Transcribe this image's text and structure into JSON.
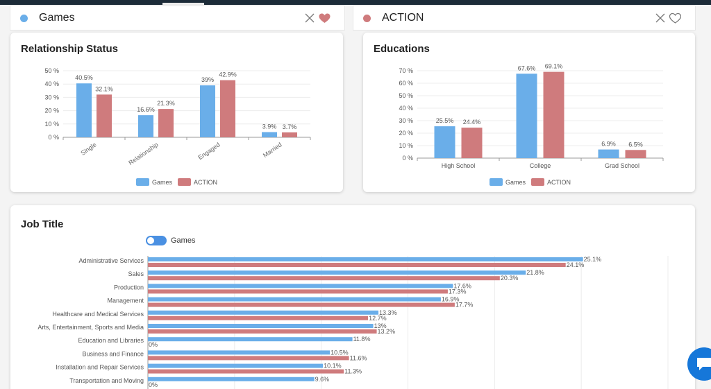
{
  "selectors": [
    {
      "name": "Games",
      "color": "#6aaee9"
    },
    {
      "name": "ACTION",
      "color": "#cf7b7d"
    }
  ],
  "colors": {
    "games": "#6aaee9",
    "action": "#cf7b7d",
    "heart_filled": "#cf7b7d"
  },
  "relationship": {
    "title": "Relationship Status",
    "legend": [
      "Games",
      "ACTION"
    ]
  },
  "educations": {
    "title": "Educations",
    "legend": [
      "Games",
      "ACTION"
    ]
  },
  "job": {
    "title": "Job Title",
    "toggle_label": "Games"
  },
  "chart_data": [
    {
      "type": "bar",
      "title": "Relationship Status",
      "categories": [
        "Single",
        "Relationship",
        "Engaged",
        "Married"
      ],
      "series": [
        {
          "name": "Games",
          "values": [
            40.5,
            16.6,
            39,
            3.9
          ]
        },
        {
          "name": "ACTION",
          "values": [
            32.1,
            21.3,
            42.9,
            3.7
          ]
        }
      ],
      "yticks": [
        "0 %",
        "10 %",
        "20 %",
        "30 %",
        "40 %",
        "50 %"
      ],
      "ylim": [
        0,
        50
      ],
      "legend": "bottom-center",
      "grid": true
    },
    {
      "type": "bar",
      "title": "Educations",
      "categories": [
        "High School",
        "College",
        "Grad School"
      ],
      "series": [
        {
          "name": "Games",
          "values": [
            25.5,
            67.6,
            6.9
          ]
        },
        {
          "name": "ACTION",
          "values": [
            24.4,
            69.1,
            6.5
          ]
        }
      ],
      "yticks": [
        "0 %",
        "10 %",
        "20 %",
        "30 %",
        "40 %",
        "50 %",
        "60 %",
        "70 %"
      ],
      "ylim": [
        0,
        70
      ],
      "legend": "bottom-center",
      "grid": true
    },
    {
      "type": "bar",
      "orientation": "horizontal",
      "title": "Job Title",
      "categories": [
        "Administrative Services",
        "Sales",
        "Production",
        "Management",
        "Healthcare and Medical Services",
        "Arts, Entertainment, Sports and Media",
        "Education and Libraries",
        "Business and Finance",
        "Installation and Repair Services",
        "Transportation and Moving"
      ],
      "series": [
        {
          "name": "Games",
          "values": [
            25.1,
            21.8,
            17.6,
            16.9,
            13.3,
            13,
            11.8,
            10.5,
            10.1,
            9.6
          ]
        },
        {
          "name": "ACTION",
          "values": [
            24.1,
            20.3,
            17.3,
            17.7,
            12.7,
            13.2,
            0,
            11.6,
            11.3,
            0
          ]
        }
      ],
      "xlim": [
        0,
        30
      ],
      "grid": true
    }
  ]
}
